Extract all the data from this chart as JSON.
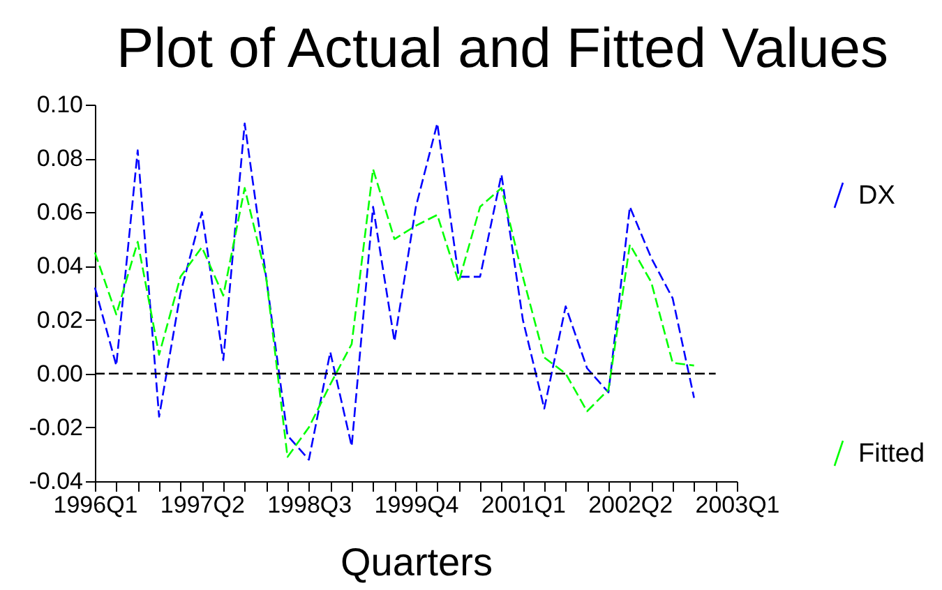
{
  "chart_data": {
    "type": "line",
    "title": "Plot of Actual and Fitted Values",
    "xlabel": "Quarters",
    "categories": [
      "1996Q1",
      null,
      null,
      null,
      null,
      "1997Q2",
      null,
      null,
      null,
      null,
      "1998Q3",
      null,
      null,
      null,
      null,
      "1999Q4",
      null,
      null,
      null,
      null,
      "2001Q1",
      null,
      null,
      null,
      null,
      "2002Q2",
      null,
      null,
      null,
      null,
      "2003Q1"
    ],
    "ylim": [
      -0.04,
      0.1
    ],
    "yticks": [
      {
        "value": -0.04,
        "label": "-0.04"
      },
      {
        "value": -0.02,
        "label": "-0.02"
      },
      {
        "value": 0,
        "label": "0.00"
      },
      {
        "value": 0.02,
        "label": "0.02"
      },
      {
        "value": 0.04,
        "label": "0.04"
      },
      {
        "value": 0.06,
        "label": "0.06"
      },
      {
        "value": 0.08,
        "label": "0.08"
      },
      {
        "value": 0.1,
        "label": "0.10"
      }
    ],
    "series": [
      {
        "name": "DX",
        "color": "#0000ff",
        "values": [
          0.032,
          0.003,
          0.083,
          -0.016,
          0.03,
          0.06,
          0.005,
          0.093,
          0.036,
          -0.023,
          -0.032,
          0.008,
          -0.027,
          0.062,
          0.012,
          0.062,
          0.093,
          0.036,
          0.036,
          0.074,
          0.02,
          -0.013,
          0.025,
          0.002,
          -0.007,
          0.062,
          0.043,
          0.028,
          -0.009,
          null,
          null
        ]
      },
      {
        "name": "Fitted",
        "color": "#00ff00",
        "values": [
          0.045,
          0.022,
          0.049,
          0.007,
          0.036,
          0.047,
          0.029,
          0.069,
          0.036,
          -0.031,
          -0.02,
          -0.004,
          0.011,
          0.076,
          0.05,
          0.055,
          0.059,
          0.034,
          0.062,
          0.069,
          0.036,
          0.006,
          0.0,
          -0.014,
          -0.006,
          0.048,
          0.034,
          0.004,
          0.003,
          null,
          null
        ]
      }
    ],
    "ref_lines": [
      {
        "axis": "y",
        "value": 0,
        "color": "#000000",
        "line_style": "dashed"
      }
    ],
    "line_style": "dashed",
    "marker": "none",
    "grid": false,
    "legend": "right"
  }
}
